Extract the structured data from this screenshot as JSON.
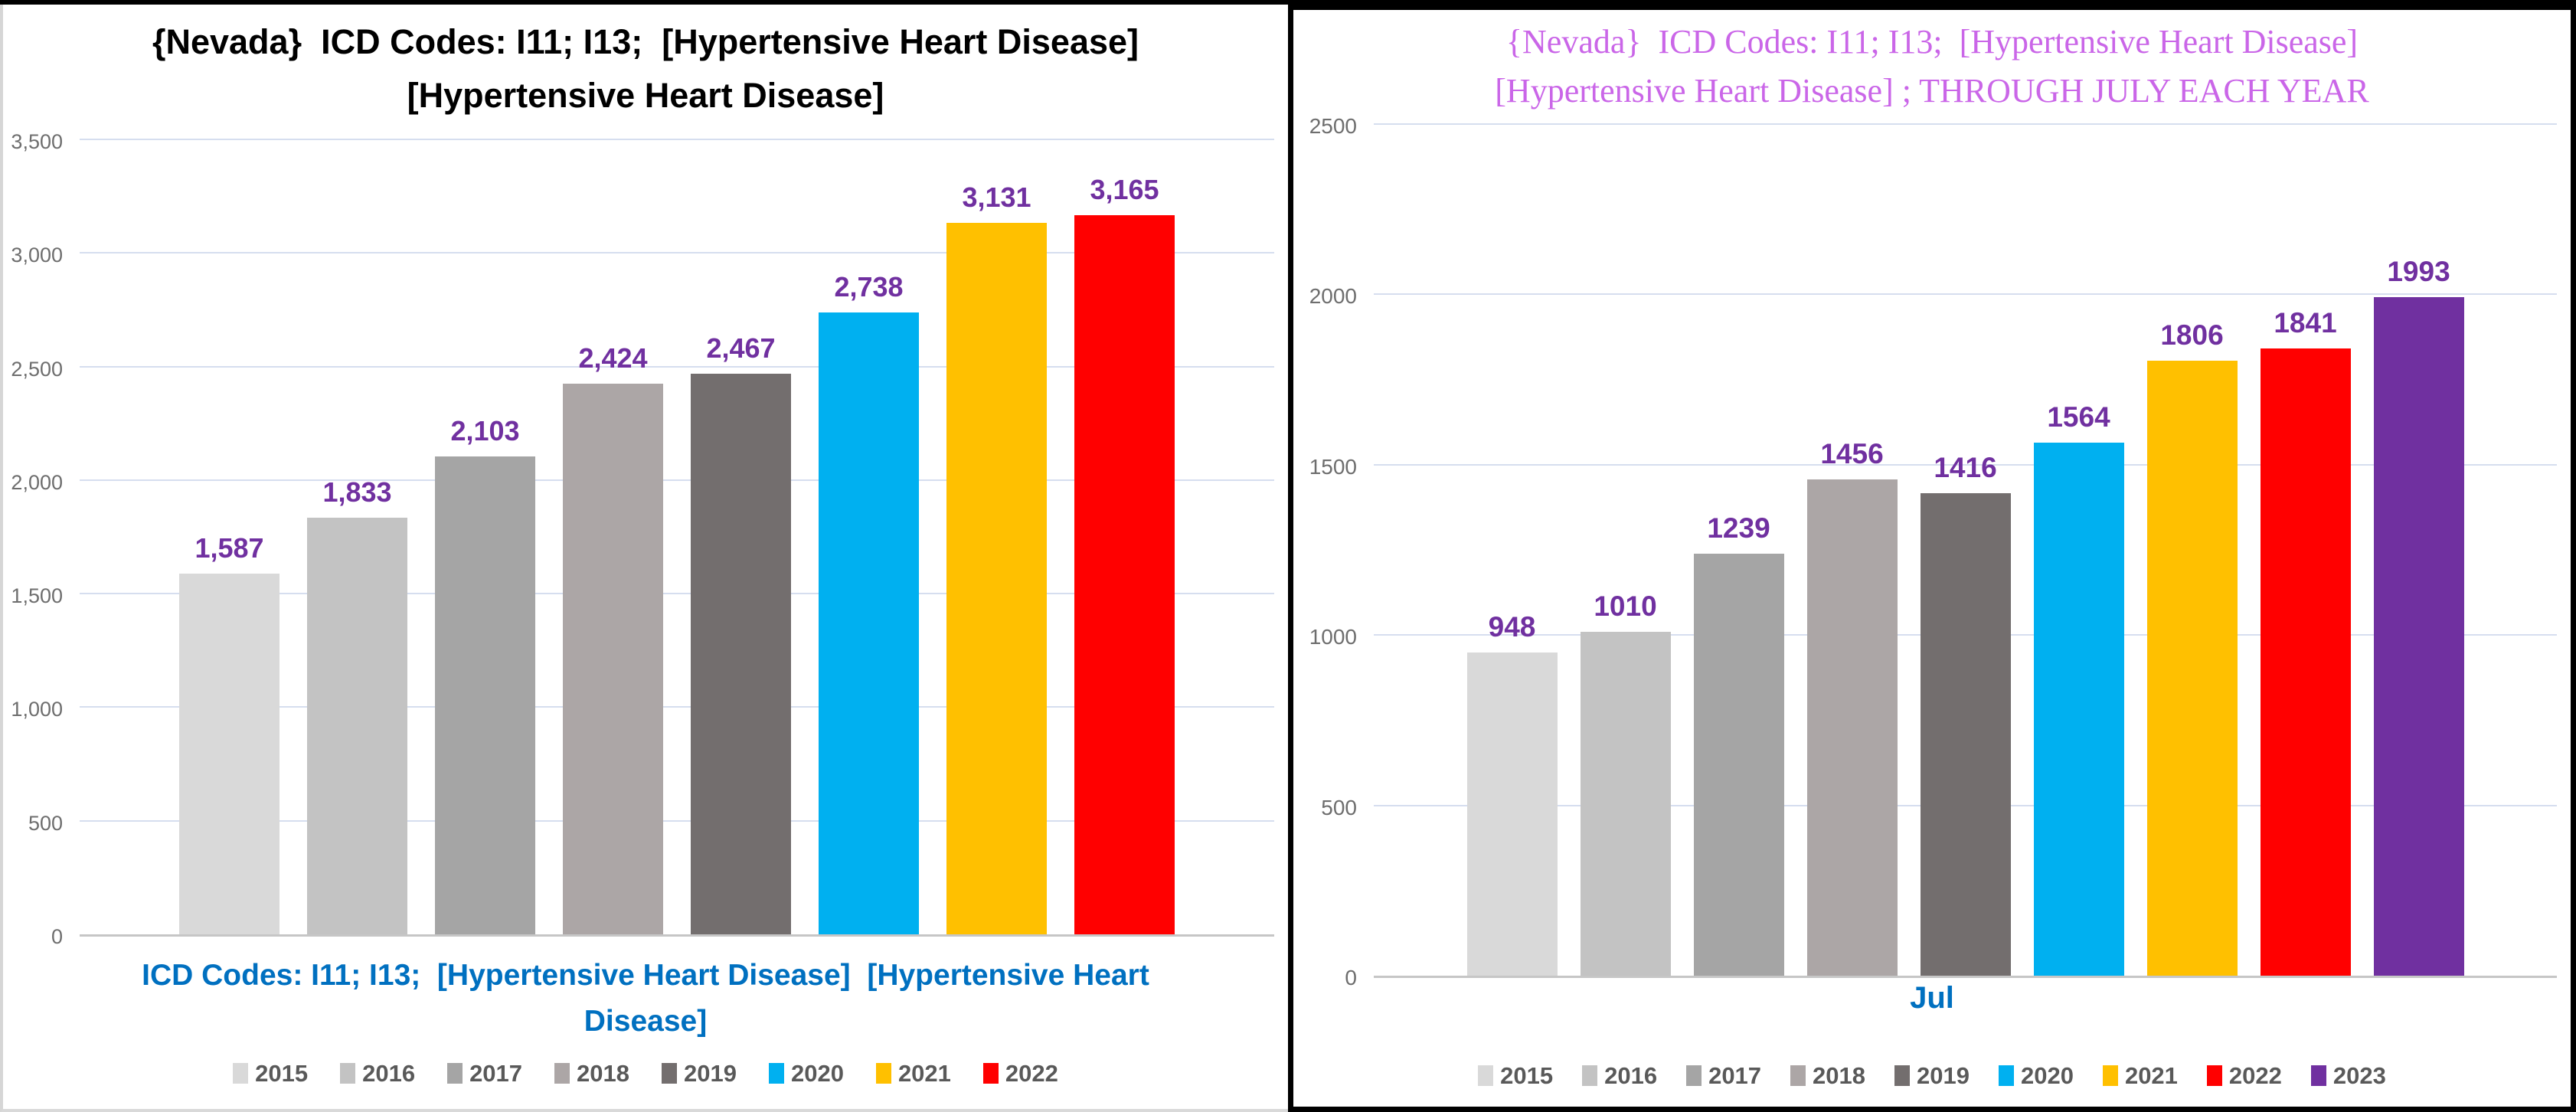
{
  "page": {
    "background": "#FFFFFF",
    "outer_border_color": "#000000",
    "left_panel_border_color": "#D9D9D9"
  },
  "styles": {
    "gridline_color": "#D6DEEF",
    "baseline_color": "#C6C6C6",
    "tick_color": "#6E6E6E",
    "legend_text_color": "#595959",
    "data_label_color": "#7030A0",
    "xlabel_color": "#0070C0",
    "left_title_color": "#000000",
    "right_title_color": "#CA66E8"
  },
  "chart_data": [
    {
      "type": "bar",
      "title": "{Nevada}  ICD Codes: I11; I13;  [Hypertensive Heart Disease]  [Hypertensive Heart Disease]",
      "xlabel": "ICD Codes: I11; I13;  [Hypertensive Heart Disease]  [Hypertensive Heart Disease]",
      "ylabel": "",
      "ylim": [
        0,
        3500
      ],
      "ytick_step": 500,
      "ytick_values": [
        3500,
        3000,
        2500,
        2000,
        1500,
        1000,
        500,
        0
      ],
      "ytick_labels": [
        "3,500",
        "3,000",
        "2,500",
        "2,000",
        "1,500",
        "1,000",
        "500",
        "0"
      ],
      "grid": true,
      "legend_position": "bottom",
      "categories": [
        "2015",
        "2016",
        "2017",
        "2018",
        "2019",
        "2020",
        "2021",
        "2022"
      ],
      "values": [
        1587,
        1833,
        2103,
        2424,
        2467,
        2738,
        3131,
        3165
      ],
      "value_labels": [
        "1,587",
        "1,833",
        "2,103",
        "2,424",
        "2,467",
        "2,738",
        "3,131",
        "3,165"
      ],
      "bar_colors": [
        "#D9D9D9",
        "#C3C3C3",
        "#A5A5A5",
        "#ACA6A6",
        "#736E6E",
        "#00B0F0",
        "#FFC000",
        "#FF0000"
      ]
    },
    {
      "type": "bar",
      "title": "{Nevada}  ICD Codes: I11; I13;  [Hypertensive Heart Disease] [Hypertensive Heart Disease] ; THROUGH JULY EACH YEAR",
      "xlabel": "Jul",
      "ylabel": "",
      "ylim": [
        0,
        2500
      ],
      "ytick_step": 500,
      "ytick_values": [
        2500,
        2000,
        1500,
        1000,
        500,
        0
      ],
      "ytick_labels": [
        "2500",
        "2000",
        "1500",
        "1000",
        "500",
        "0"
      ],
      "grid": true,
      "legend_position": "bottom",
      "categories": [
        "2015",
        "2016",
        "2017",
        "2018",
        "2019",
        "2020",
        "2021",
        "2022",
        "2023"
      ],
      "values": [
        948,
        1010,
        1239,
        1456,
        1416,
        1564,
        1806,
        1841,
        1993
      ],
      "value_labels": [
        "948",
        "1010",
        "1239",
        "1456",
        "1416",
        "1564",
        "1806",
        "1841",
        "1993"
      ],
      "bar_colors": [
        "#D9D9D9",
        "#C3C3C3",
        "#A5A5A5",
        "#ACA6A6",
        "#736E6E",
        "#00B0F0",
        "#FFC000",
        "#FF0000",
        "#7030A0"
      ]
    }
  ]
}
